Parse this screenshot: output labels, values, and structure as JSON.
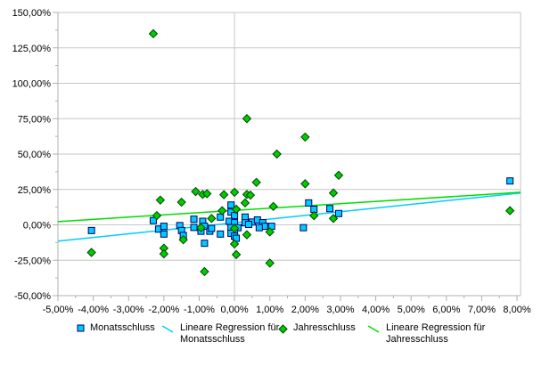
{
  "chart_data": {
    "type": "scatter",
    "title": "",
    "x_axis": {
      "min": -5,
      "max": 8.1,
      "major_tick_values": [
        -5,
        -4,
        -3,
        -2,
        -1,
        0,
        1,
        2,
        3,
        4,
        5,
        6,
        7,
        8
      ],
      "major_tick_labels": [
        "-5,00%",
        "-4,00%",
        "-3,00%",
        "-2,00%",
        "-1,00%",
        "0,00%",
        "1,00%",
        "2,00%",
        "3,00%",
        "4,00%",
        "5,00%",
        "6,00%",
        "7,00%",
        "8,00%"
      ],
      "minor_tick_step": 0.5
    },
    "y_axis": {
      "min": -50,
      "max": 150,
      "major_tick_values": [
        150,
        125,
        100,
        75,
        50,
        25,
        0,
        -25,
        -50
      ],
      "major_tick_labels": [
        "150,00%",
        "125,00%",
        "100,00%",
        "75,00%",
        "50,00%",
        "25,00%",
        "0,00%",
        "-25,00%",
        "-50,00%"
      ],
      "minor_tick_step": 12.5
    },
    "gridlines": {
      "horizontal_major": true,
      "vertical_at_zero": true,
      "right_border": true
    },
    "series": [
      {
        "name": "Monatsschluss",
        "kind": "scatter",
        "marker": "square",
        "fill": "#00ccff",
        "stroke": "#000066",
        "points": [
          [
            -4.05,
            -4
          ],
          [
            -2.3,
            3
          ],
          [
            -2.15,
            -3
          ],
          [
            -2.0,
            -1
          ],
          [
            -2.0,
            -6.5
          ],
          [
            -1.55,
            -0.5
          ],
          [
            -1.5,
            -4
          ],
          [
            -1.45,
            -7.5
          ],
          [
            -1.15,
            4
          ],
          [
            -1.15,
            -1.8
          ],
          [
            -0.95,
            -4.5
          ],
          [
            -0.9,
            2.5
          ],
          [
            -0.85,
            -1
          ],
          [
            -0.85,
            -13
          ],
          [
            -0.7,
            -4.5
          ],
          [
            -0.65,
            -2.5
          ],
          [
            -0.4,
            5.5
          ],
          [
            -0.4,
            -6.5
          ],
          [
            -0.1,
            14
          ],
          [
            -0.1,
            9
          ],
          [
            0.0,
            6.5
          ],
          [
            -0.15,
            2.5
          ],
          [
            0.0,
            1.5
          ],
          [
            0.3,
            5.5
          ],
          [
            0.3,
            1.5
          ],
          [
            0.5,
            2
          ],
          [
            0.65,
            3.5
          ],
          [
            0.4,
            0.3
          ],
          [
            0.8,
            1.5
          ],
          [
            0.85,
            -1
          ],
          [
            1.05,
            -1
          ],
          [
            0.7,
            -2
          ],
          [
            -0.1,
            -2
          ],
          [
            0.1,
            -2
          ],
          [
            0.0,
            -4.7
          ],
          [
            -0.1,
            -6
          ],
          [
            0.0,
            -8
          ],
          [
            0.05,
            -9.5
          ],
          [
            1.95,
            -2
          ],
          [
            2.1,
            15.5
          ],
          [
            2.25,
            11
          ],
          [
            2.7,
            11.5
          ],
          [
            2.95,
            8
          ],
          [
            7.8,
            31
          ]
        ]
      },
      {
        "name": "Jahresschluss",
        "kind": "scatter",
        "marker": "diamond",
        "fill": "#00cc00",
        "stroke": "#004400",
        "points": [
          [
            -4.05,
            -19.5
          ],
          [
            -2.3,
            135
          ],
          [
            -2.2,
            6.5
          ],
          [
            -2.1,
            17.5
          ],
          [
            -2.0,
            -16.5
          ],
          [
            -2.0,
            -20.5
          ],
          [
            -1.5,
            16
          ],
          [
            -1.45,
            -10.5
          ],
          [
            -1.1,
            23.5
          ],
          [
            -0.95,
            -2
          ],
          [
            -0.9,
            21.5
          ],
          [
            -0.85,
            -33
          ],
          [
            -0.78,
            22
          ],
          [
            -0.65,
            4.5
          ],
          [
            -0.35,
            10
          ],
          [
            -0.3,
            21.3
          ],
          [
            0.0,
            23
          ],
          [
            0.0,
            -2.5
          ],
          [
            0.0,
            -13.5
          ],
          [
            0.05,
            11
          ],
          [
            0.05,
            -21
          ],
          [
            0.3,
            15.5
          ],
          [
            0.35,
            21.5
          ],
          [
            0.35,
            75
          ],
          [
            0.35,
            -7
          ],
          [
            0.45,
            21
          ],
          [
            0.62,
            30
          ],
          [
            1.0,
            -5
          ],
          [
            1.0,
            -27
          ],
          [
            1.1,
            13
          ],
          [
            1.2,
            50
          ],
          [
            2.0,
            62
          ],
          [
            2.0,
            29
          ],
          [
            2.25,
            6.5
          ],
          [
            2.8,
            22.5
          ],
          [
            2.8,
            4.5
          ],
          [
            2.95,
            35
          ],
          [
            7.8,
            10
          ]
        ]
      },
      {
        "name": "Lineare Regression für Monatsschluss",
        "kind": "line",
        "color": "#00ccff",
        "from": [
          -5,
          -11.5
        ],
        "to": [
          8.1,
          22.5
        ]
      },
      {
        "name": "Lineare Regression für Jahresschluss",
        "kind": "line",
        "color": "#00dd00",
        "from": [
          -5,
          2.3
        ],
        "to": [
          8.1,
          23
        ]
      }
    ],
    "legend_position": "bottom"
  },
  "legend": {
    "items": [
      {
        "label": "Monatsschluss"
      },
      {
        "label": "Lineare Regression für Monatsschluss"
      },
      {
        "label": "Jahresschluss"
      },
      {
        "label": "Lineare Regression für Jahresschluss"
      }
    ]
  },
  "colors": {
    "background": "#ffffff",
    "gridline": "#c6c6c6",
    "axis": "#b0b0b0",
    "text": "#000000",
    "monatsschluss_fill": "#00ccff",
    "monatsschluss_border": "#000066",
    "jahresschluss_fill": "#00cc00",
    "jahresschluss_border": "#004400",
    "regression_monatsschluss": "#00ccff",
    "regression_jahresschluss": "#00dd00"
  }
}
